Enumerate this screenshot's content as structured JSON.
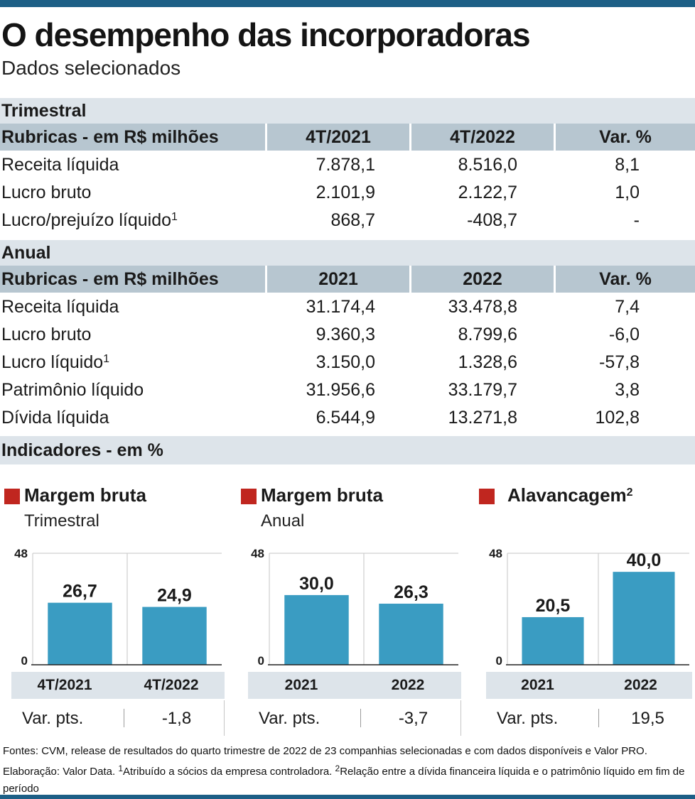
{
  "title": "O desempenho das incorporadoras",
  "subtitle": "Dados selecionados",
  "quarterly": {
    "section": "Trimestral",
    "headers": [
      "Rubricas  - em R$ milhões",
      "4T/2021",
      "4T/2022",
      "Var. %"
    ],
    "rows": [
      {
        "label": "Receita líquida",
        "sup": "",
        "a": "7.878,1",
        "b": "8.516,0",
        "c": "8,1"
      },
      {
        "label": "Lucro bruto",
        "sup": "",
        "a": "2.101,9",
        "b": "2.122,7",
        "c": "1,0"
      },
      {
        "label": "Lucro/prejuízo líquido",
        "sup": "1",
        "a": "868,7",
        "b": "-408,7",
        "c": "-"
      }
    ]
  },
  "annual": {
    "section": "Anual",
    "headers": [
      "Rubricas  - em R$ milhões",
      "2021",
      "2022",
      "Var. %"
    ],
    "rows": [
      {
        "label": "Receita líquida",
        "sup": "",
        "a": "31.174,4",
        "b": "33.478,8",
        "c": "7,4"
      },
      {
        "label": "Lucro bruto",
        "sup": "",
        "a": "9.360,3",
        "b": "8.799,6",
        "c": "-6,0"
      },
      {
        "label": "Lucro líquido",
        "sup": "1",
        "a": "3.150,0",
        "b": "1.328,6",
        "c": "-57,8"
      },
      {
        "label": "Patrimônio líquido",
        "sup": "",
        "a": "31.956,6",
        "b": "33.179,7",
        "c": "3,8"
      },
      {
        "label": "Dívida líquida",
        "sup": "",
        "a": "6.544,9",
        "b": "13.271,8",
        "c": "102,8"
      }
    ]
  },
  "indicators_label": "Indicadores - em %",
  "colors": {
    "bar": "#3a9cc2",
    "marker": "#c0261f",
    "band": "#dde4ea",
    "header": "#b7c6d0",
    "accent_bar": "#1d5f86"
  },
  "chart_data": [
    {
      "type": "bar",
      "title": "Margem bruta",
      "title_sup": "",
      "subtitle": "Trimestral",
      "categories": [
        "4T/2021",
        "4T/2022"
      ],
      "values": [
        26.7,
        24.9
      ],
      "value_labels": [
        "26,7",
        "24,9"
      ],
      "ylim": [
        0,
        48
      ],
      "yticks": [
        "0",
        "48"
      ],
      "var_label": "Var. pts.",
      "var_value": "-1,8"
    },
    {
      "type": "bar",
      "title": "Margem bruta",
      "title_sup": "",
      "subtitle": "Anual",
      "categories": [
        "2021",
        "2022"
      ],
      "values": [
        30.0,
        26.3
      ],
      "value_labels": [
        "30,0",
        "26,3"
      ],
      "ylim": [
        0,
        48
      ],
      "yticks": [
        "0",
        "48"
      ],
      "var_label": "Var. pts.",
      "var_value": "-3,7"
    },
    {
      "type": "bar",
      "title": "Alavancagem",
      "title_sup": "2",
      "subtitle": "",
      "categories": [
        "2021",
        "2022"
      ],
      "values": [
        20.5,
        40.0
      ],
      "value_labels": [
        "20,5",
        "40,0"
      ],
      "ylim": [
        0,
        48
      ],
      "yticks": [
        "0",
        "48"
      ],
      "var_label": "Var. pts.",
      "var_value": "19,5"
    }
  ],
  "footer": {
    "p1": "Fontes: CVM, release de resultados do quarto trimestre de 2022 de 23 companhias selecionadas e com dados disponíveis e Valor PRO. Elaboração: Valor Data. ",
    "n1": "1",
    "p2": "Atribuído a sócios da empresa controladora. ",
    "n2": "2",
    "p3": "Relação entre a dívida financeira líquida e o patrimônio líquido em fim de período"
  }
}
